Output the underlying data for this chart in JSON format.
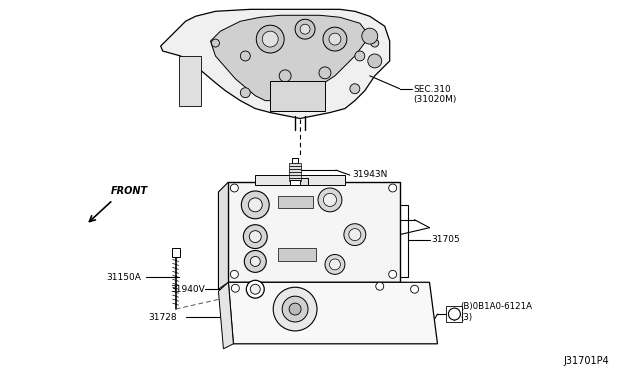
{
  "background_color": "#ffffff",
  "fig_width": 6.4,
  "fig_height": 3.72,
  "dpi": 100,
  "labels": {
    "sec310": "SEC.310\n(31020M)",
    "part_31943N": "31943N",
    "part_31705": "31705",
    "part_31150A": "31150A",
    "part_31940V": "31940V",
    "part_31728": "31728",
    "part_bolt": "(B)0B1A0-6121A\n(3)",
    "front": "FRONT",
    "diagram_id": "J31701P4"
  },
  "line_color": "#000000",
  "text_color": "#000000",
  "gray_fill": "#d8d8d8",
  "light_gray": "#e8e8e8"
}
